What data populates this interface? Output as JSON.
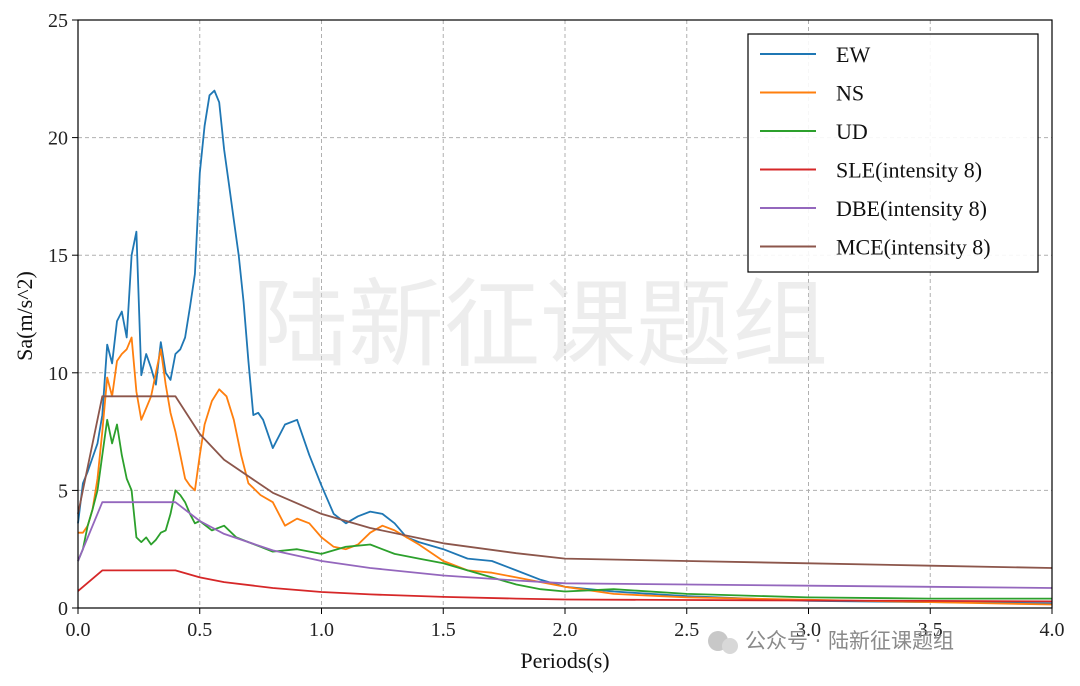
{
  "chart_data": {
    "type": "line",
    "xlabel": "Periods(s)",
    "ylabel": "Sa(m/s^2)",
    "xlim": [
      0.0,
      4.0
    ],
    "ylim": [
      0,
      25
    ],
    "xticks": [
      "0.0",
      "0.5",
      "1.0",
      "1.5",
      "2.0",
      "2.5",
      "3.0",
      "3.5",
      "4.0"
    ],
    "yticks": [
      "0",
      "5",
      "10",
      "15",
      "20",
      "25"
    ],
    "grid": true,
    "legend_position": "top-right",
    "series": [
      {
        "name": "EW",
        "color": "#1f77b4",
        "x": [
          0.0,
          0.02,
          0.04,
          0.06,
          0.08,
          0.1,
          0.12,
          0.14,
          0.16,
          0.18,
          0.2,
          0.22,
          0.24,
          0.26,
          0.28,
          0.3,
          0.32,
          0.34,
          0.36,
          0.38,
          0.4,
          0.42,
          0.44,
          0.46,
          0.48,
          0.5,
          0.52,
          0.54,
          0.56,
          0.58,
          0.6,
          0.62,
          0.64,
          0.66,
          0.68,
          0.7,
          0.72,
          0.74,
          0.76,
          0.8,
          0.85,
          0.9,
          0.95,
          1.0,
          1.05,
          1.1,
          1.15,
          1.2,
          1.25,
          1.3,
          1.35,
          1.4,
          1.5,
          1.6,
          1.7,
          1.8,
          1.9,
          2.0,
          2.2,
          2.5,
          3.0,
          3.5,
          4.0
        ],
        "y": [
          3.6,
          5.3,
          5.8,
          6.4,
          7.0,
          8.2,
          11.2,
          10.4,
          12.2,
          12.6,
          11.5,
          15.0,
          16.0,
          9.9,
          10.8,
          10.2,
          9.5,
          11.3,
          10.0,
          9.7,
          10.8,
          11.0,
          11.5,
          12.8,
          14.2,
          18.5,
          20.5,
          21.8,
          22.0,
          21.5,
          19.5,
          18.0,
          16.5,
          15.0,
          13.0,
          10.5,
          8.2,
          8.3,
          8.0,
          6.8,
          7.8,
          8.0,
          6.5,
          5.2,
          4.0,
          3.6,
          3.9,
          4.1,
          4.0,
          3.6,
          3.0,
          2.8,
          2.5,
          2.1,
          2.0,
          1.6,
          1.2,
          0.9,
          0.7,
          0.5,
          0.3,
          0.25,
          0.2
        ]
      },
      {
        "name": "NS",
        "color": "#ff7f0e",
        "x": [
          0.0,
          0.02,
          0.04,
          0.06,
          0.08,
          0.1,
          0.12,
          0.14,
          0.16,
          0.18,
          0.2,
          0.22,
          0.24,
          0.26,
          0.28,
          0.3,
          0.32,
          0.34,
          0.36,
          0.38,
          0.4,
          0.42,
          0.44,
          0.46,
          0.48,
          0.5,
          0.52,
          0.55,
          0.58,
          0.61,
          0.64,
          0.67,
          0.7,
          0.75,
          0.8,
          0.85,
          0.9,
          0.95,
          1.0,
          1.05,
          1.1,
          1.15,
          1.2,
          1.25,
          1.3,
          1.35,
          1.4,
          1.5,
          1.6,
          1.7,
          1.8,
          1.9,
          2.0,
          2.2,
          2.5,
          3.0,
          3.5,
          4.0
        ],
        "y": [
          3.2,
          3.2,
          3.5,
          4.2,
          5.5,
          7.5,
          9.8,
          9.0,
          10.5,
          10.8,
          11.0,
          11.5,
          9.2,
          8.0,
          8.5,
          9.0,
          10.0,
          11.0,
          9.5,
          8.3,
          7.5,
          6.5,
          5.5,
          5.2,
          5.0,
          6.5,
          7.8,
          8.8,
          9.3,
          9.0,
          8.0,
          6.5,
          5.3,
          4.8,
          4.5,
          3.5,
          3.8,
          3.6,
          3.0,
          2.6,
          2.5,
          2.7,
          3.2,
          3.5,
          3.3,
          3.0,
          2.7,
          2.0,
          1.6,
          1.5,
          1.3,
          1.1,
          0.9,
          0.6,
          0.45,
          0.35,
          0.25,
          0.15
        ]
      },
      {
        "name": "UD",
        "color": "#2ca02c",
        "x": [
          0.0,
          0.02,
          0.04,
          0.06,
          0.08,
          0.1,
          0.12,
          0.14,
          0.16,
          0.18,
          0.2,
          0.22,
          0.24,
          0.26,
          0.28,
          0.3,
          0.32,
          0.34,
          0.36,
          0.38,
          0.4,
          0.42,
          0.44,
          0.46,
          0.48,
          0.5,
          0.55,
          0.6,
          0.65,
          0.7,
          0.75,
          0.8,
          0.9,
          1.0,
          1.1,
          1.2,
          1.3,
          1.4,
          1.5,
          1.6,
          1.7,
          1.8,
          1.9,
          2.0,
          2.2,
          2.5,
          3.0,
          3.5,
          4.0
        ],
        "y": [
          2.0,
          2.5,
          3.5,
          4.2,
          5.0,
          6.5,
          8.0,
          7.0,
          7.8,
          6.5,
          5.5,
          5.0,
          3.0,
          2.8,
          3.0,
          2.7,
          2.9,
          3.2,
          3.3,
          4.0,
          5.0,
          4.8,
          4.5,
          4.0,
          3.6,
          3.7,
          3.3,
          3.5,
          3.0,
          2.8,
          2.6,
          2.4,
          2.5,
          2.3,
          2.6,
          2.7,
          2.3,
          2.1,
          1.9,
          1.6,
          1.3,
          1.0,
          0.8,
          0.7,
          0.8,
          0.6,
          0.45,
          0.4,
          0.4
        ]
      },
      {
        "name": "SLE(intensity 8)",
        "color": "#d62728",
        "x": [
          0.0,
          0.1,
          0.4,
          0.5,
          0.6,
          0.8,
          1.0,
          1.2,
          1.5,
          1.8,
          2.0,
          2.5,
          3.0,
          3.5,
          4.0
        ],
        "y": [
          0.72,
          1.6,
          1.6,
          1.3,
          1.1,
          0.85,
          0.68,
          0.58,
          0.47,
          0.4,
          0.36,
          0.34,
          0.32,
          0.3,
          0.28
        ]
      },
      {
        "name": "DBE(intensity 8)",
        "color": "#9467bd",
        "x": [
          0.0,
          0.1,
          0.4,
          0.5,
          0.6,
          0.8,
          1.0,
          1.2,
          1.5,
          1.8,
          2.0,
          2.5,
          3.0,
          3.5,
          4.0
        ],
        "y": [
          2.0,
          4.5,
          4.5,
          3.7,
          3.15,
          2.45,
          2.0,
          1.7,
          1.38,
          1.17,
          1.05,
          1.0,
          0.95,
          0.9,
          0.85
        ]
      },
      {
        "name": "MCE(intensity 8)",
        "color": "#8c564b",
        "x": [
          0.0,
          0.1,
          0.4,
          0.5,
          0.6,
          0.8,
          1.0,
          1.2,
          1.5,
          1.8,
          2.0,
          2.5,
          3.0,
          3.5,
          4.0
        ],
        "y": [
          4.0,
          9.0,
          9.0,
          7.4,
          6.3,
          4.9,
          4.0,
          3.4,
          2.75,
          2.33,
          2.1,
          2.0,
          1.9,
          1.8,
          1.7
        ]
      }
    ]
  },
  "watermark": {
    "center_text": "陆新征课题组",
    "footer_text": "公众号 · 陆新征课题组"
  }
}
